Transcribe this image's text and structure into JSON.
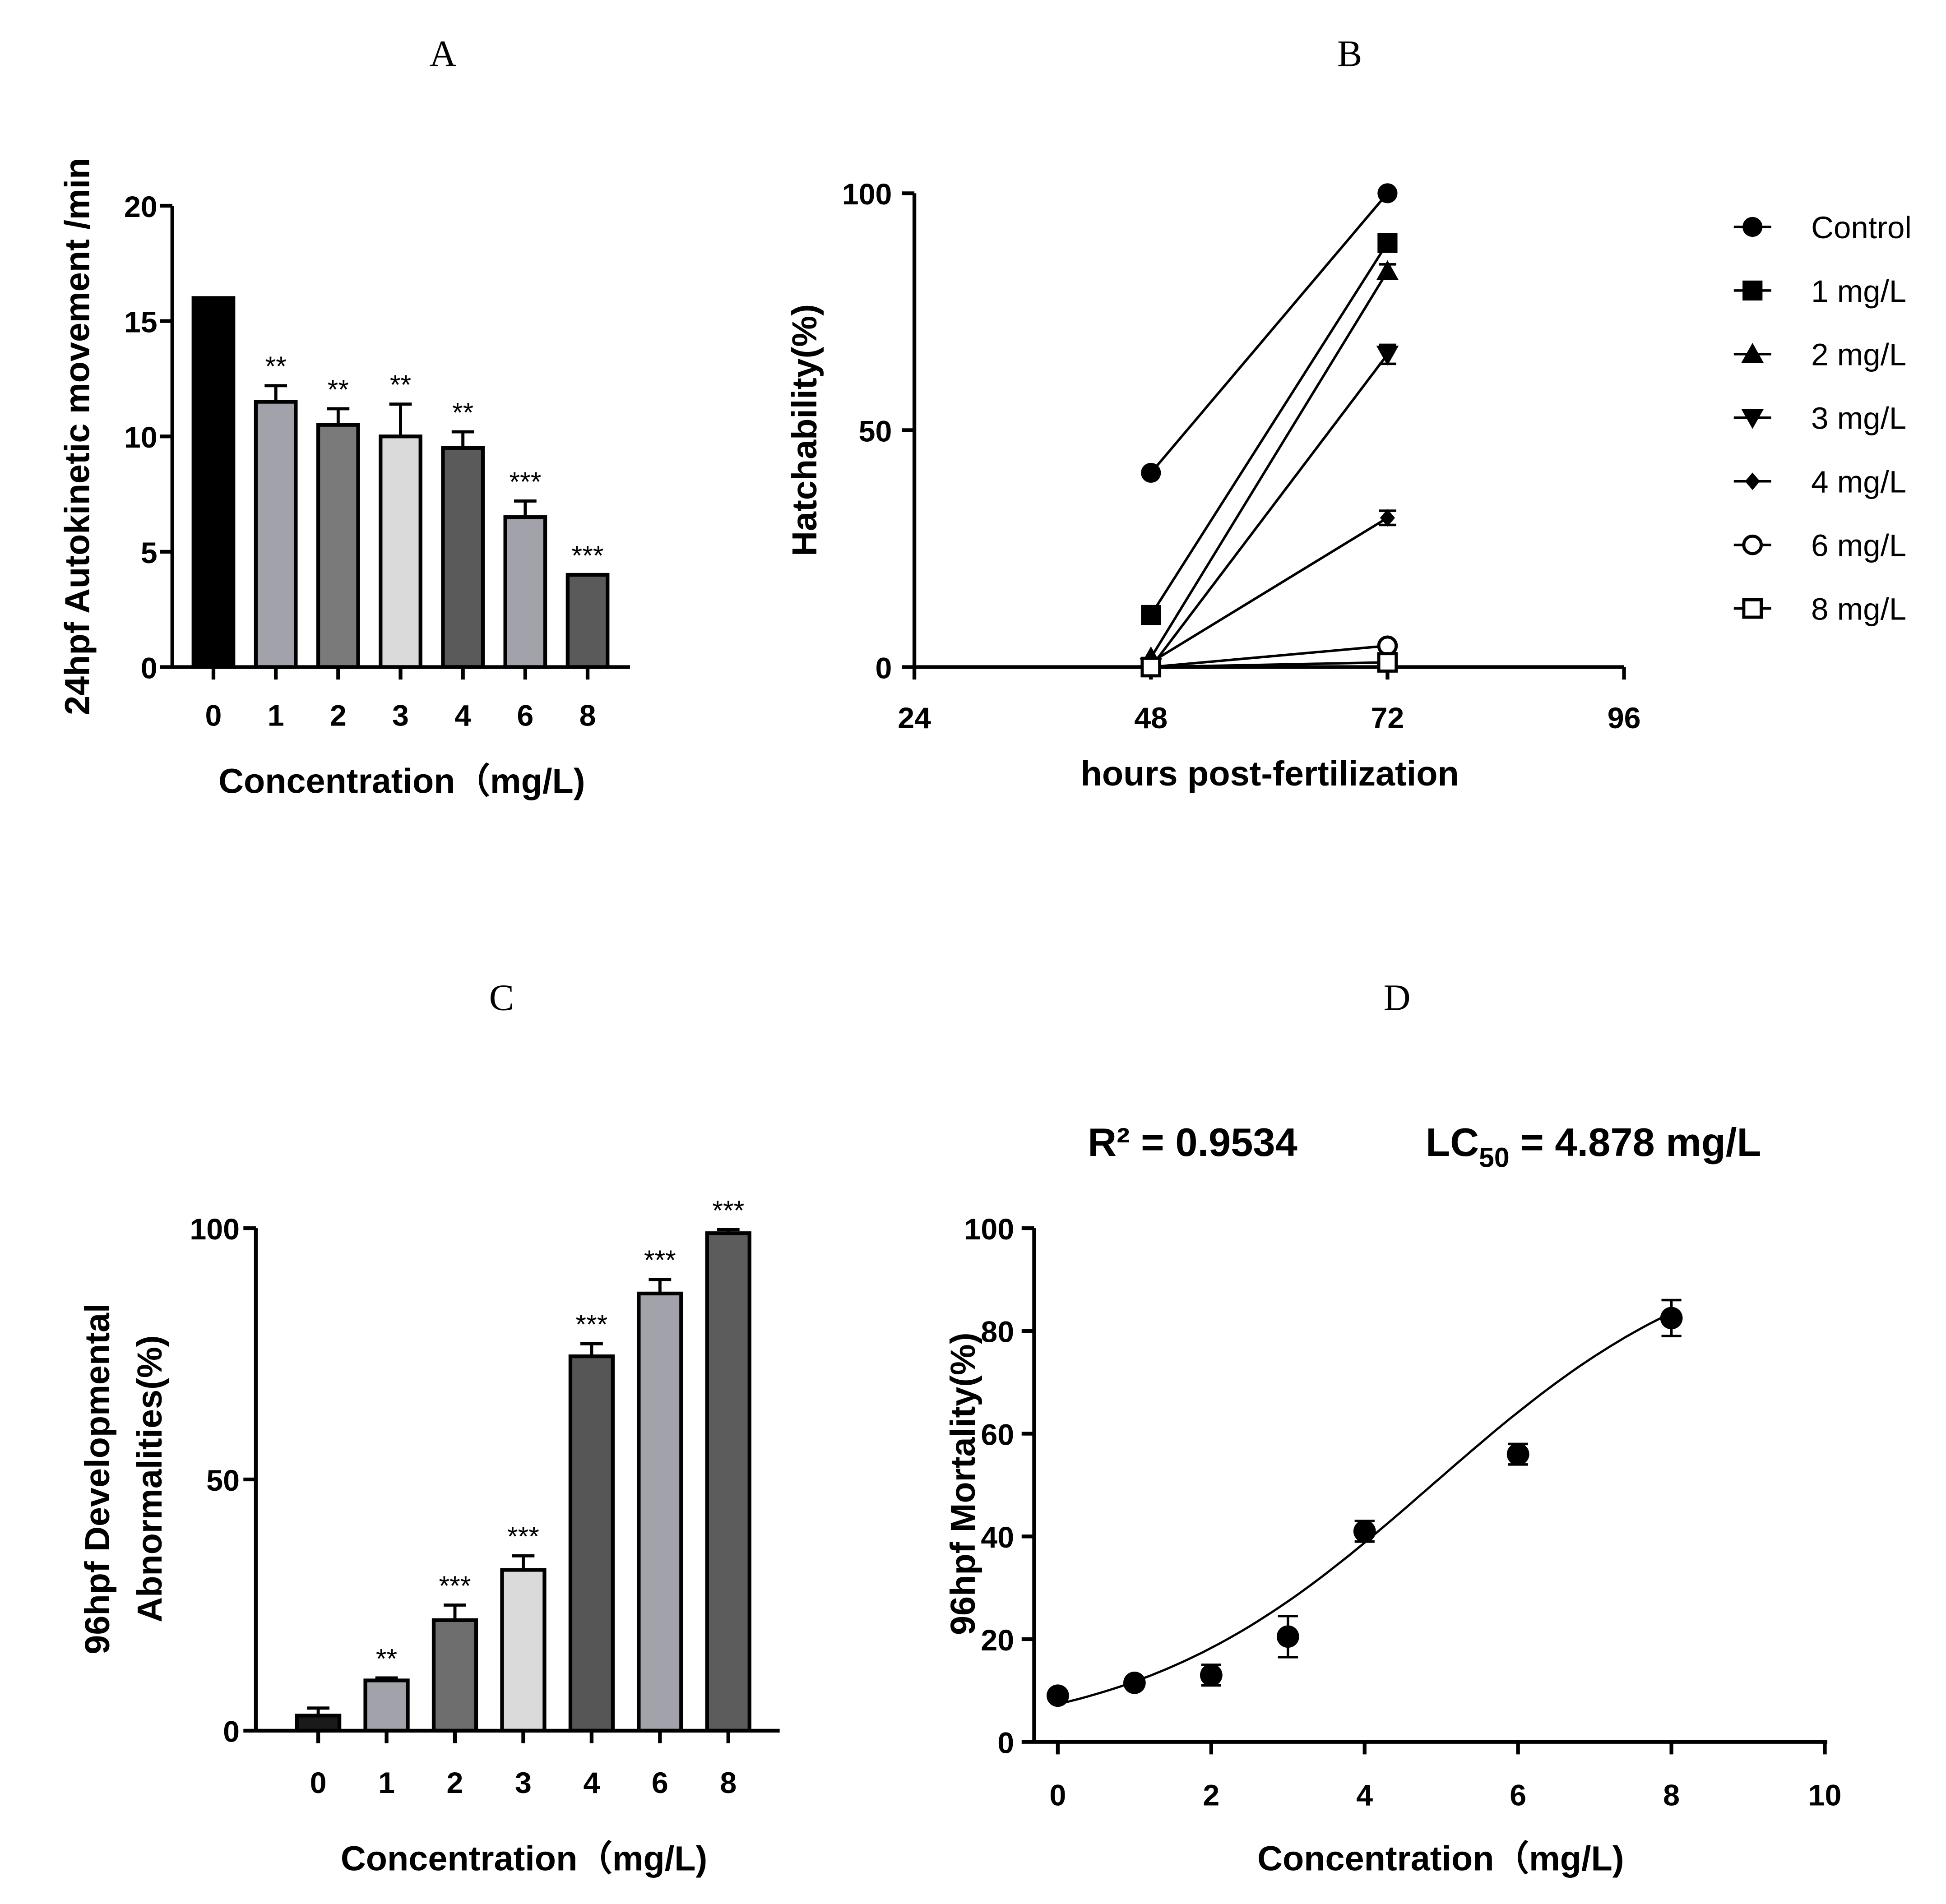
{
  "chart_data": [
    {
      "panel": "A",
      "type": "bar",
      "xlabel": "Concentration（mg/L)",
      "ylabel": "24hpf Autokinetic movement /min",
      "categories": [
        "0",
        "1",
        "2",
        "3",
        "4",
        "6",
        "8"
      ],
      "values": [
        16,
        11.5,
        10.5,
        10,
        9.5,
        6.5,
        4
      ],
      "errors": [
        0,
        0.7,
        0.7,
        1.4,
        0.7,
        0.7,
        0
      ],
      "significance": [
        "",
        "**",
        "**",
        "**",
        "**",
        "***",
        "***"
      ],
      "colors": [
        "#000000",
        "#a2a2aa",
        "#7a7a7a",
        "#dadada",
        "#5a5a5a",
        "#a2a2aa",
        "#5a5a5a"
      ],
      "ylim": [
        0,
        20
      ],
      "y_ticks": [
        "0",
        "5",
        "10",
        "15",
        "20"
      ]
    },
    {
      "panel": "B",
      "type": "line",
      "xlabel": "hours post-fertilization",
      "ylabel": "Hatchability(%)",
      "xlim": [
        24,
        96
      ],
      "ylim": [
        0,
        100
      ],
      "x_ticks": [
        "24",
        "48",
        "72",
        "96"
      ],
      "y_ticks": [
        "0",
        "50",
        "100"
      ],
      "x": [
        48,
        72
      ],
      "series": [
        {
          "name": "Control",
          "marker": "filled-circle",
          "values": [
            41,
            100
          ],
          "errors": [
            0,
            0
          ]
        },
        {
          "name": "1 mg/L",
          "marker": "filled-square",
          "values": [
            11,
            89.5
          ],
          "errors": [
            0,
            1.5
          ]
        },
        {
          "name": "2 mg/L",
          "marker": "filled-triangle-up",
          "values": [
            2,
            83.5
          ],
          "errors": [
            0,
            1.5
          ]
        },
        {
          "name": "3 mg/L",
          "marker": "filled-triangle-down",
          "values": [
            0,
            66
          ],
          "errors": [
            0,
            2
          ]
        },
        {
          "name": "4 mg/L",
          "marker": "filled-diamond",
          "values": [
            1,
            31.5
          ],
          "errors": [
            0,
            1.5
          ]
        },
        {
          "name": "6 mg/L",
          "marker": "open-circle",
          "values": [
            0,
            4.5
          ],
          "errors": [
            0,
            0
          ]
        },
        {
          "name": "8 mg/L",
          "marker": "open-square",
          "values": [
            0,
            1
          ],
          "errors": [
            0,
            0
          ]
        }
      ]
    },
    {
      "panel": "C",
      "type": "bar",
      "xlabel": "Concentration（mg/L)",
      "ylabel": [
        "96hpf Developmental",
        "Abnormalities(%)"
      ],
      "categories": [
        "0",
        "1",
        "2",
        "3",
        "4",
        "6",
        "8"
      ],
      "values": [
        3,
        10,
        22,
        32,
        74.5,
        87,
        99
      ],
      "errors": [
        1.5,
        0.5,
        3,
        2.8,
        2.5,
        2.8,
        0.7
      ],
      "significance": [
        "",
        "**",
        "***",
        "***",
        "***",
        "***",
        "***"
      ],
      "colors": [
        "#1a1a1a",
        "#a2a2aa",
        "#6e6e6e",
        "#dadada",
        "#565656",
        "#a2a2aa",
        "#5c5c5c"
      ],
      "ylim": [
        0,
        100
      ],
      "y_ticks": [
        "0",
        "50",
        "100"
      ]
    },
    {
      "panel": "D",
      "type": "scatter",
      "xlabel": "Concentration（mg/L)",
      "ylabel": "96hpf Mortality(%)",
      "x": [
        0,
        1,
        2,
        3,
        4,
        6,
        8
      ],
      "y": [
        9,
        11.5,
        13,
        20.5,
        41,
        56,
        82.5
      ],
      "errors": [
        0.5,
        0.5,
        2,
        4,
        2,
        2,
        3.5
      ],
      "xlim": [
        0,
        10
      ],
      "ylim": [
        0,
        100
      ],
      "x_ticks": [
        "0",
        "2",
        "4",
        "6",
        "8",
        "10"
      ],
      "y_ticks": [
        "0",
        "20",
        "40",
        "60",
        "80",
        "100"
      ],
      "r2_label": "R² = 0.9534",
      "lc50_label": {
        "prefix": "LC",
        "sub": "50",
        "rest": " = 4.878 mg/L"
      },
      "fit": {
        "x50": 4.878,
        "slope": 0.52,
        "x_from": 0,
        "x_to": 8
      }
    }
  ]
}
